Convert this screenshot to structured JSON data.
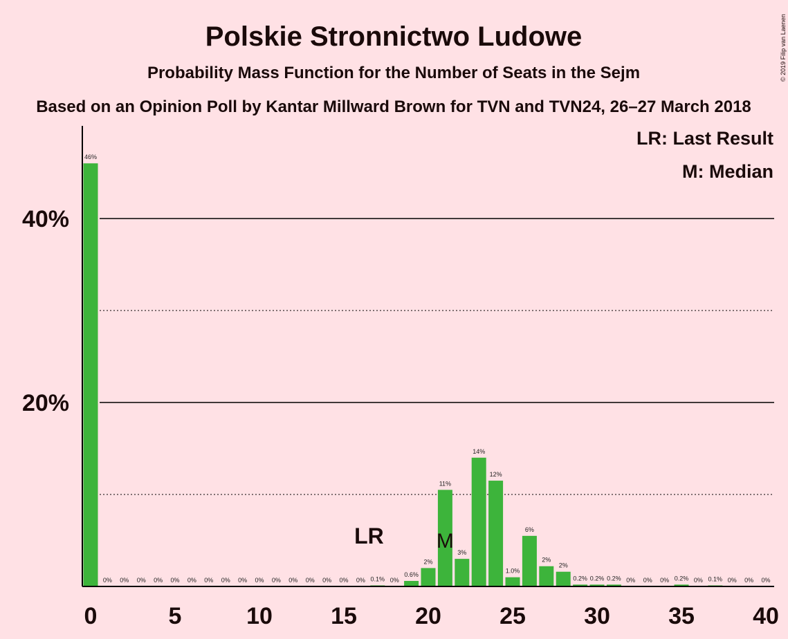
{
  "chart_data": {
    "type": "bar",
    "title": "Polskie Stronnictwo Ludowe",
    "subtitle": "Probability Mass Function for the Number of Seats in the Sejm",
    "source": "Based on an Opinion Poll by Kantar Millward Brown for TVN and TVN24, 26–27 March 2018",
    "copyright": "© 2019 Filip van Laenen",
    "legend": {
      "position": "top-right",
      "entries": [
        "LR: Last Result",
        "M: Median"
      ]
    },
    "xlim": [
      0,
      40
    ],
    "ylim": [
      0,
      50
    ],
    "x_ticks": [
      0,
      5,
      10,
      15,
      20,
      25,
      30,
      35,
      40
    ],
    "y_ticks": [
      20,
      40
    ],
    "y_tick_labels": [
      "20%",
      "40%"
    ],
    "bar_color": "#3db43b",
    "last_result": {
      "seat": 16,
      "label": "LR"
    },
    "median": {
      "seat": 21,
      "label": "M"
    },
    "x": [
      0,
      1,
      2,
      3,
      4,
      5,
      6,
      7,
      8,
      9,
      10,
      11,
      12,
      13,
      14,
      15,
      16,
      17,
      18,
      19,
      20,
      21,
      22,
      23,
      24,
      25,
      26,
      27,
      28,
      29,
      30,
      31,
      32,
      33,
      34,
      35,
      36,
      37,
      38,
      39,
      40
    ],
    "values": [
      46,
      0,
      0,
      0,
      0,
      0,
      0,
      0,
      0,
      0,
      0,
      0,
      0,
      0,
      0,
      0,
      0,
      0.1,
      0,
      0.6,
      2,
      10.5,
      3,
      14,
      11.5,
      1.0,
      5.5,
      2.2,
      1.6,
      0.2,
      0.2,
      0.2,
      0,
      0,
      0,
      0.2,
      0,
      0.1,
      0,
      0,
      0
    ],
    "labels": [
      "46%",
      "0%",
      "0%",
      "0%",
      "0%",
      "0%",
      "0%",
      "0%",
      "0%",
      "0%",
      "0%",
      "0%",
      "0%",
      "0%",
      "0%",
      "0%",
      "0%",
      "0.1%",
      "0%",
      "0.6%",
      "2%",
      "11%",
      "3%",
      "14%",
      "12%",
      "1.0%",
      "6%",
      "2%",
      "2%",
      "0.2%",
      "0.2%",
      "0.2%",
      "0%",
      "0%",
      "0%",
      "0.2%",
      "0%",
      "0.1%",
      "0%",
      "0%",
      "0%"
    ]
  }
}
